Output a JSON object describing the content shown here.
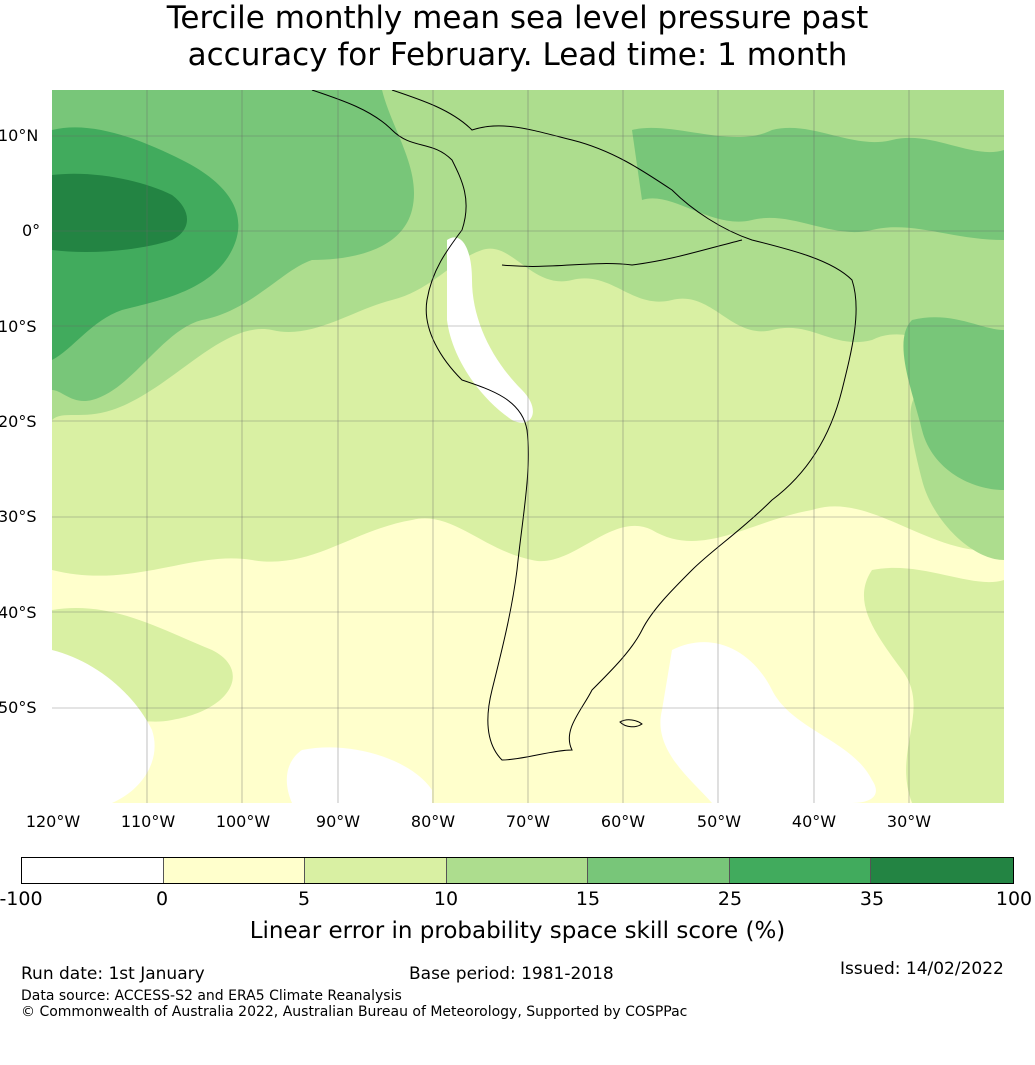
{
  "title": {
    "line1": "Tercile monthly mean sea level pressure past",
    "line2": "accuracy for February. Lead time: 1 month"
  },
  "map": {
    "region": "South America",
    "lat_ticks": [
      "10°N",
      "0°",
      "10°S",
      "20°S",
      "30°S",
      "40°S",
      "50°S"
    ],
    "lon_ticks": [
      "120°W",
      "110°W",
      "100°W",
      "90°W",
      "80°W",
      "70°W",
      "60°W",
      "50°W",
      "40°W",
      "30°W"
    ],
    "colors": {
      "c_neg": "#ffffff",
      "c0_5": "#ffffcc",
      "c5_10": "#d9f0a3",
      "c10_15": "#addd8e",
      "c15_25": "#78c679",
      "c25_35": "#41ab5d",
      "c35_100": "#238443",
      "grid": "#666666",
      "coast": "#000000"
    }
  },
  "colorbar": {
    "ticks": [
      "-100",
      "0",
      "5",
      "10",
      "15",
      "25",
      "35",
      "100"
    ],
    "segments": [
      {
        "from": "-100",
        "to": "0",
        "color": "#ffffff"
      },
      {
        "from": "0",
        "to": "5",
        "color": "#ffffcc"
      },
      {
        "from": "5",
        "to": "10",
        "color": "#d9f0a3"
      },
      {
        "from": "10",
        "to": "15",
        "color": "#addd8e"
      },
      {
        "from": "15",
        "to": "25",
        "color": "#78c679"
      },
      {
        "from": "25",
        "to": "35",
        "color": "#41ab5d"
      },
      {
        "from": "35",
        "to": "100",
        "color": "#238443"
      }
    ],
    "label": "Linear error in probability space skill score (%)"
  },
  "footer": {
    "run_date": "Run date: 1st January",
    "base_period": "Base period: 1981-2018",
    "issued": "Issued: 14/02/2022",
    "data_source": "Data source: ACCESS-S2 and ERA5 Climate Reanalysis",
    "copyright": "© Commonwealth of Australia 2022, Australian Bureau of Meteorology, Supported by COSPPac"
  }
}
